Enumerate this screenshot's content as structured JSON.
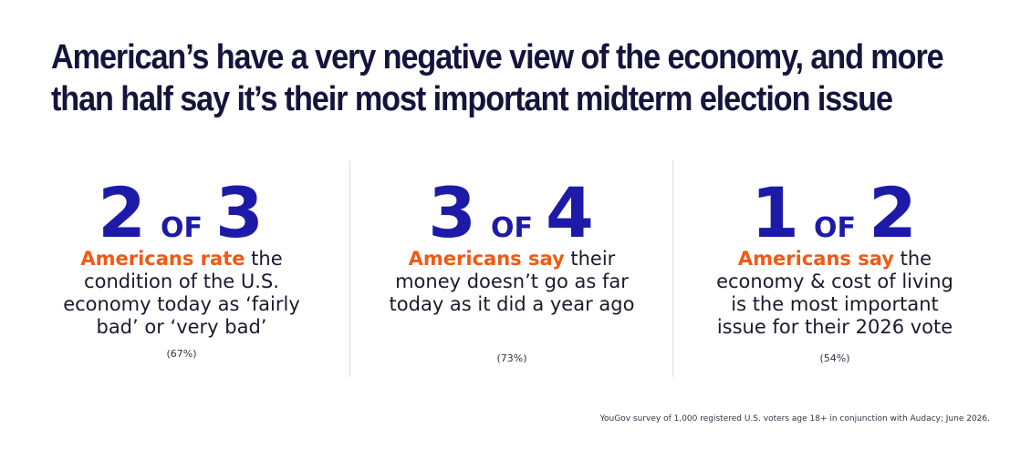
{
  "headline": {
    "line1": "American’s have a very negative view of the economy, and more",
    "line2": "than half say it’s their most important midterm election issue"
  },
  "stats": [
    {
      "numerator": "2",
      "of": "OF",
      "denominator": "3",
      "highlight": "Americans rate",
      "text": " the condition of the U.S. economy today as ‘fairly bad’ or ‘very bad’",
      "percent": "(67%)"
    },
    {
      "numerator": "3",
      "of": "OF",
      "denominator": "4",
      "highlight": "Americans say",
      "text": " their money doesn’t go as far today as it did a year ago",
      "percent": "(73%)"
    },
    {
      "numerator": "1",
      "of": "OF",
      "denominator": "2",
      "highlight": "Americans say",
      "text": " the economy & cost of living is the most important issue for their 2026 vote",
      "percent": "(54%)"
    }
  ],
  "source": "YouGov survey of 1,000 registered U.S. voters age 18+ in conjunction with Audacy; June 2026.",
  "colors": {
    "headline": "#14143c",
    "big_number": "#1d1aa8",
    "highlight": "#f05a14"
  }
}
